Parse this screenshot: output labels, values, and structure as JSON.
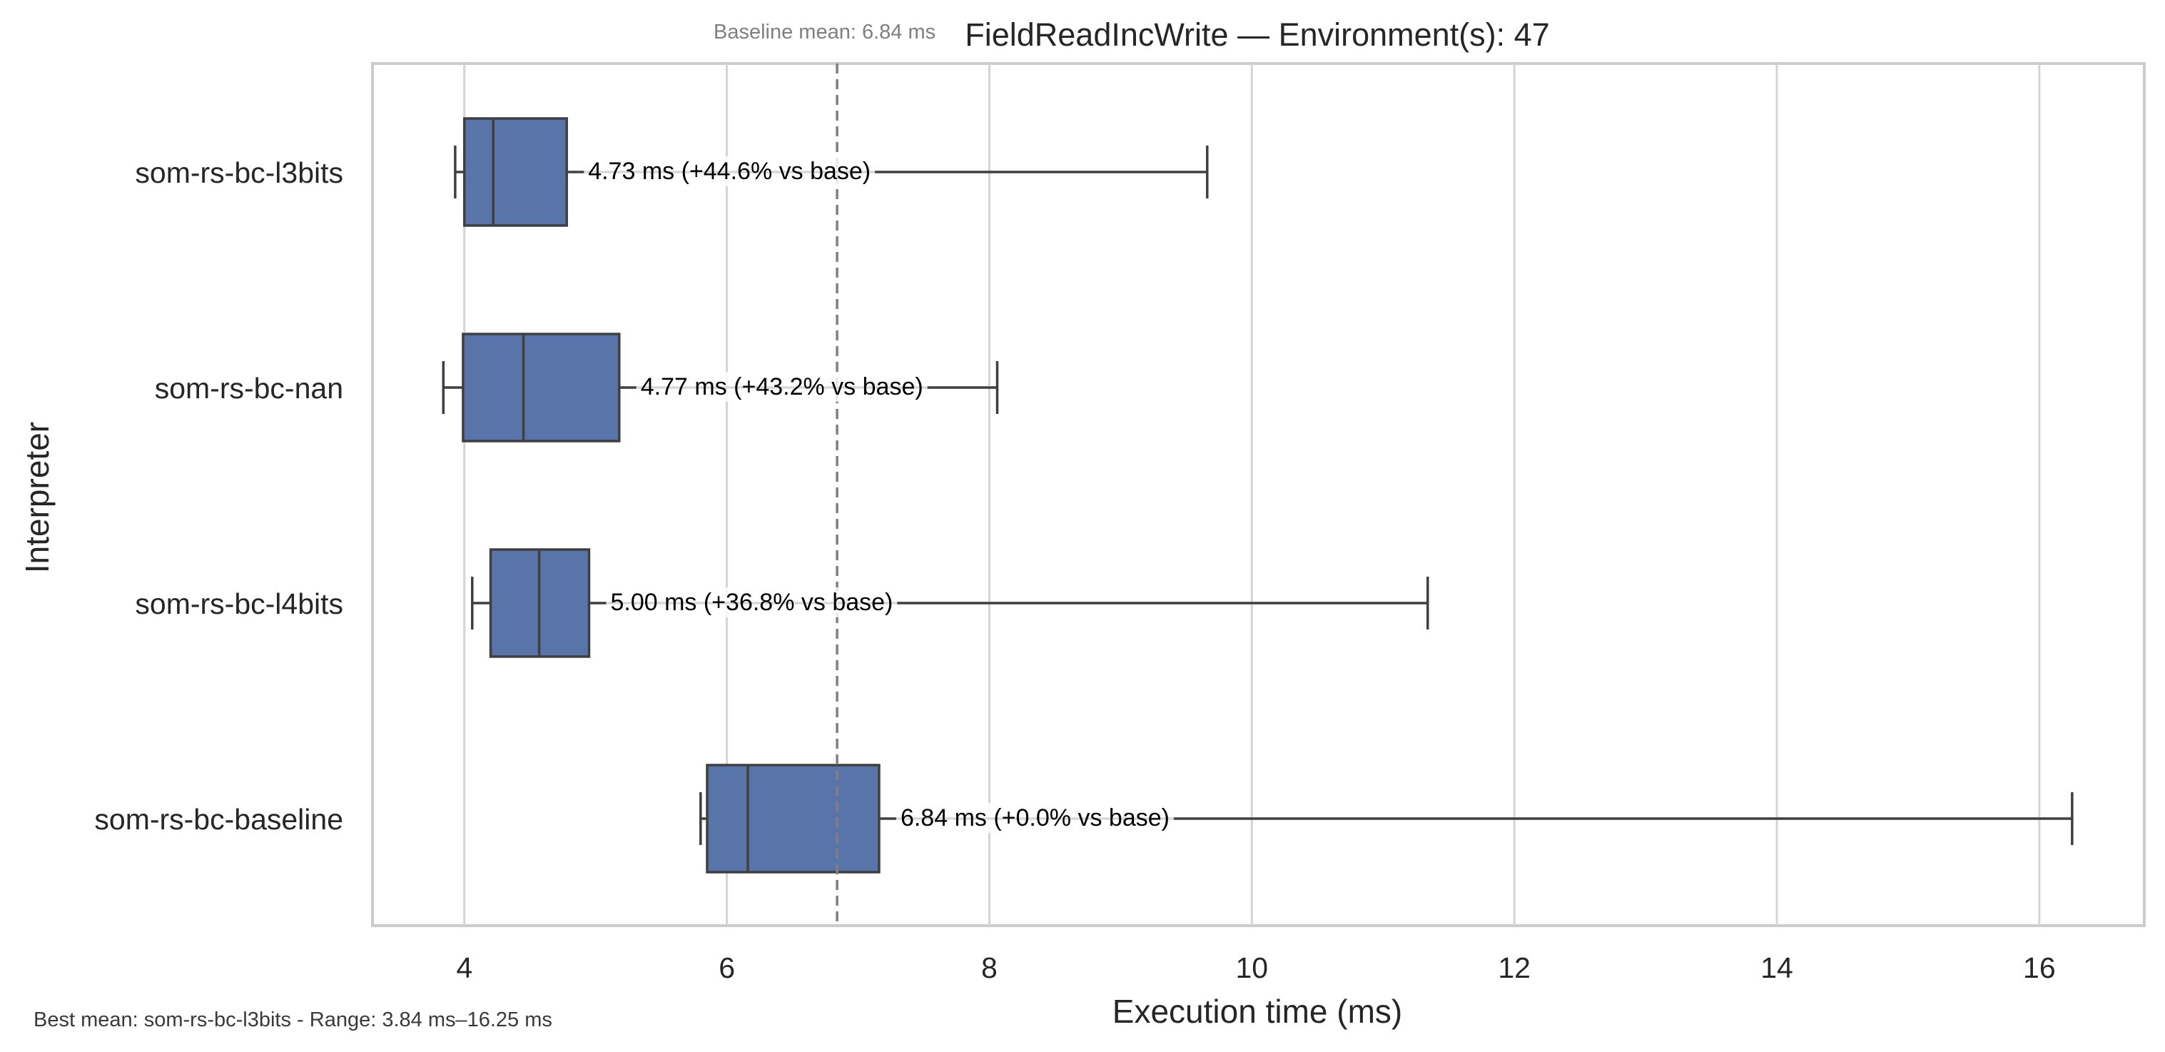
{
  "chart_data": {
    "type": "box",
    "title": "FieldReadIncWrite — Environment(s): 47",
    "baseline_note": "Baseline mean: 6.84 ms",
    "xlabel": "Execution time (ms)",
    "ylabel": "Interpreter",
    "xlim": [
      3.3,
      16.8
    ],
    "xticks": [
      4,
      6,
      8,
      10,
      12,
      14,
      16
    ],
    "grid": "vertical",
    "baseline_mean": 6.84,
    "footer": "Best mean: som-rs-bc-l3bits - Range: 3.84 ms–16.25 ms",
    "box_color": "#5874a8",
    "categories": [
      "som-rs-bc-l3bits",
      "som-rs-bc-nan",
      "som-rs-bc-l4bits",
      "som-rs-bc-baseline"
    ],
    "boxes": [
      {
        "name": "som-rs-bc-l3bits",
        "whisker_low": 3.93,
        "q1": 4.0,
        "median": 4.22,
        "q3": 4.78,
        "whisker_high": 9.66,
        "label": "4.73 ms  (+44.6% vs base)"
      },
      {
        "name": "som-rs-bc-nan",
        "whisker_low": 3.84,
        "q1": 3.99,
        "median": 4.45,
        "q3": 5.18,
        "whisker_high": 8.06,
        "label": "4.77 ms  (+43.2% vs base)"
      },
      {
        "name": "som-rs-bc-l4bits",
        "whisker_low": 4.06,
        "q1": 4.2,
        "median": 4.57,
        "q3": 4.95,
        "whisker_high": 11.34,
        "label": "5.00 ms  (+36.8% vs base)"
      },
      {
        "name": "som-rs-bc-baseline",
        "whisker_low": 5.8,
        "q1": 5.85,
        "median": 6.16,
        "q3": 7.16,
        "whisker_high": 16.25,
        "label": "6.84 ms  (+0.0% vs base)"
      }
    ]
  }
}
